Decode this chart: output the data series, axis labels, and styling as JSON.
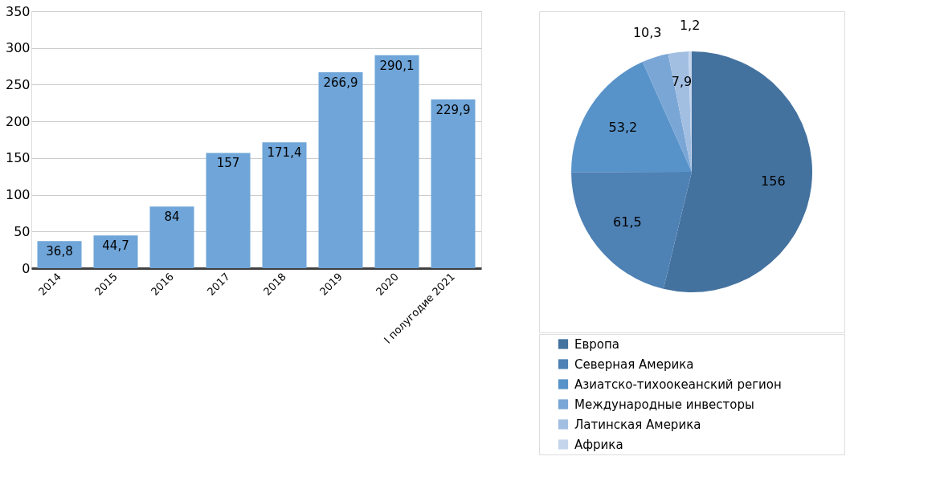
{
  "chart_data": [
    {
      "type": "bar",
      "categories": [
        "2014",
        "2015",
        "2016",
        "2017",
        "2018",
        "2019",
        "2020",
        "I полугодие 2021"
      ],
      "values": [
        36.8,
        44.7,
        84,
        157,
        171.4,
        266.9,
        290.1,
        229.9
      ],
      "value_labels": [
        "36,8",
        "44,7",
        "84",
        "157",
        "171,4",
        "266,9",
        "290,1",
        "229,9"
      ],
      "color": "#6fa5d8",
      "ylim": [
        0,
        350
      ],
      "yticks": [
        0,
        50,
        100,
        150,
        200,
        250,
        300,
        350
      ],
      "grid": "y"
    },
    {
      "type": "pie",
      "categories": [
        "Европа",
        "Северная Америка",
        "Азиатско-тихоокеанский регион",
        "Международные инвесторы",
        "Латинская Америка",
        "Африка"
      ],
      "values": [
        156,
        61.5,
        53.2,
        10.3,
        7.9,
        1.2
      ],
      "value_labels": [
        "156",
        "61,5",
        "53,2",
        "10,3",
        "7,9",
        "1,2"
      ],
      "colors": [
        "#44729f",
        "#4e81b4",
        "#5793c9",
        "#7aa6d6",
        "#a2bfe2",
        "#c5d5ec"
      ],
      "legend": "bottom"
    }
  ]
}
